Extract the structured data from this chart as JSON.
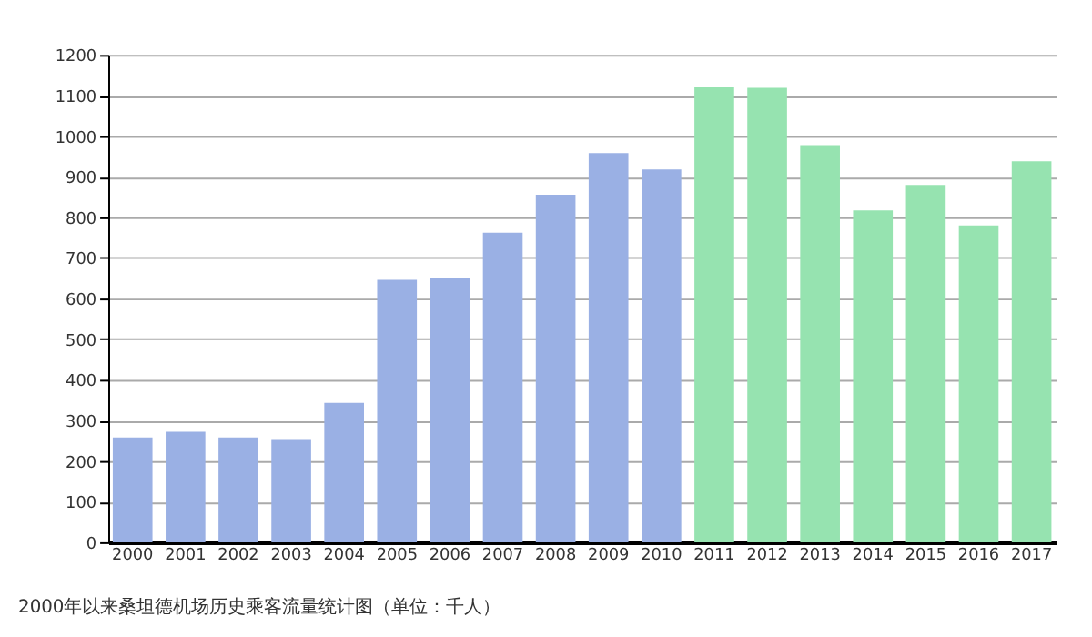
{
  "chart_data": {
    "type": "bar",
    "categories": [
      "2000",
      "2001",
      "2002",
      "2003",
      "2004",
      "2005",
      "2006",
      "2007",
      "2008",
      "2009",
      "2010",
      "2011",
      "2012",
      "2013",
      "2014",
      "2015",
      "2016",
      "2017"
    ],
    "values": [
      258,
      272,
      258,
      254,
      343,
      646,
      651,
      762,
      856,
      958,
      918,
      1120,
      1119,
      978,
      817,
      880,
      780,
      938
    ],
    "colors": [
      "#9ab0e4",
      "#9ab0e4",
      "#9ab0e4",
      "#9ab0e4",
      "#9ab0e4",
      "#9ab0e4",
      "#9ab0e4",
      "#9ab0e4",
      "#9ab0e4",
      "#9ab0e4",
      "#9ab0e4",
      "#96e3b0",
      "#96e3b0",
      "#96e3b0",
      "#96e3b0",
      "#96e3b0",
      "#96e3b0",
      "#96e3b0"
    ],
    "ylim": [
      0,
      1200
    ],
    "yticks": [
      0,
      100,
      200,
      300,
      400,
      500,
      600,
      700,
      800,
      900,
      1000,
      1100,
      1200
    ],
    "grid": "y",
    "annotations": [
      "2000年以来桑坦德机场历史乘客流量统计图（单位：千人）"
    ]
  }
}
